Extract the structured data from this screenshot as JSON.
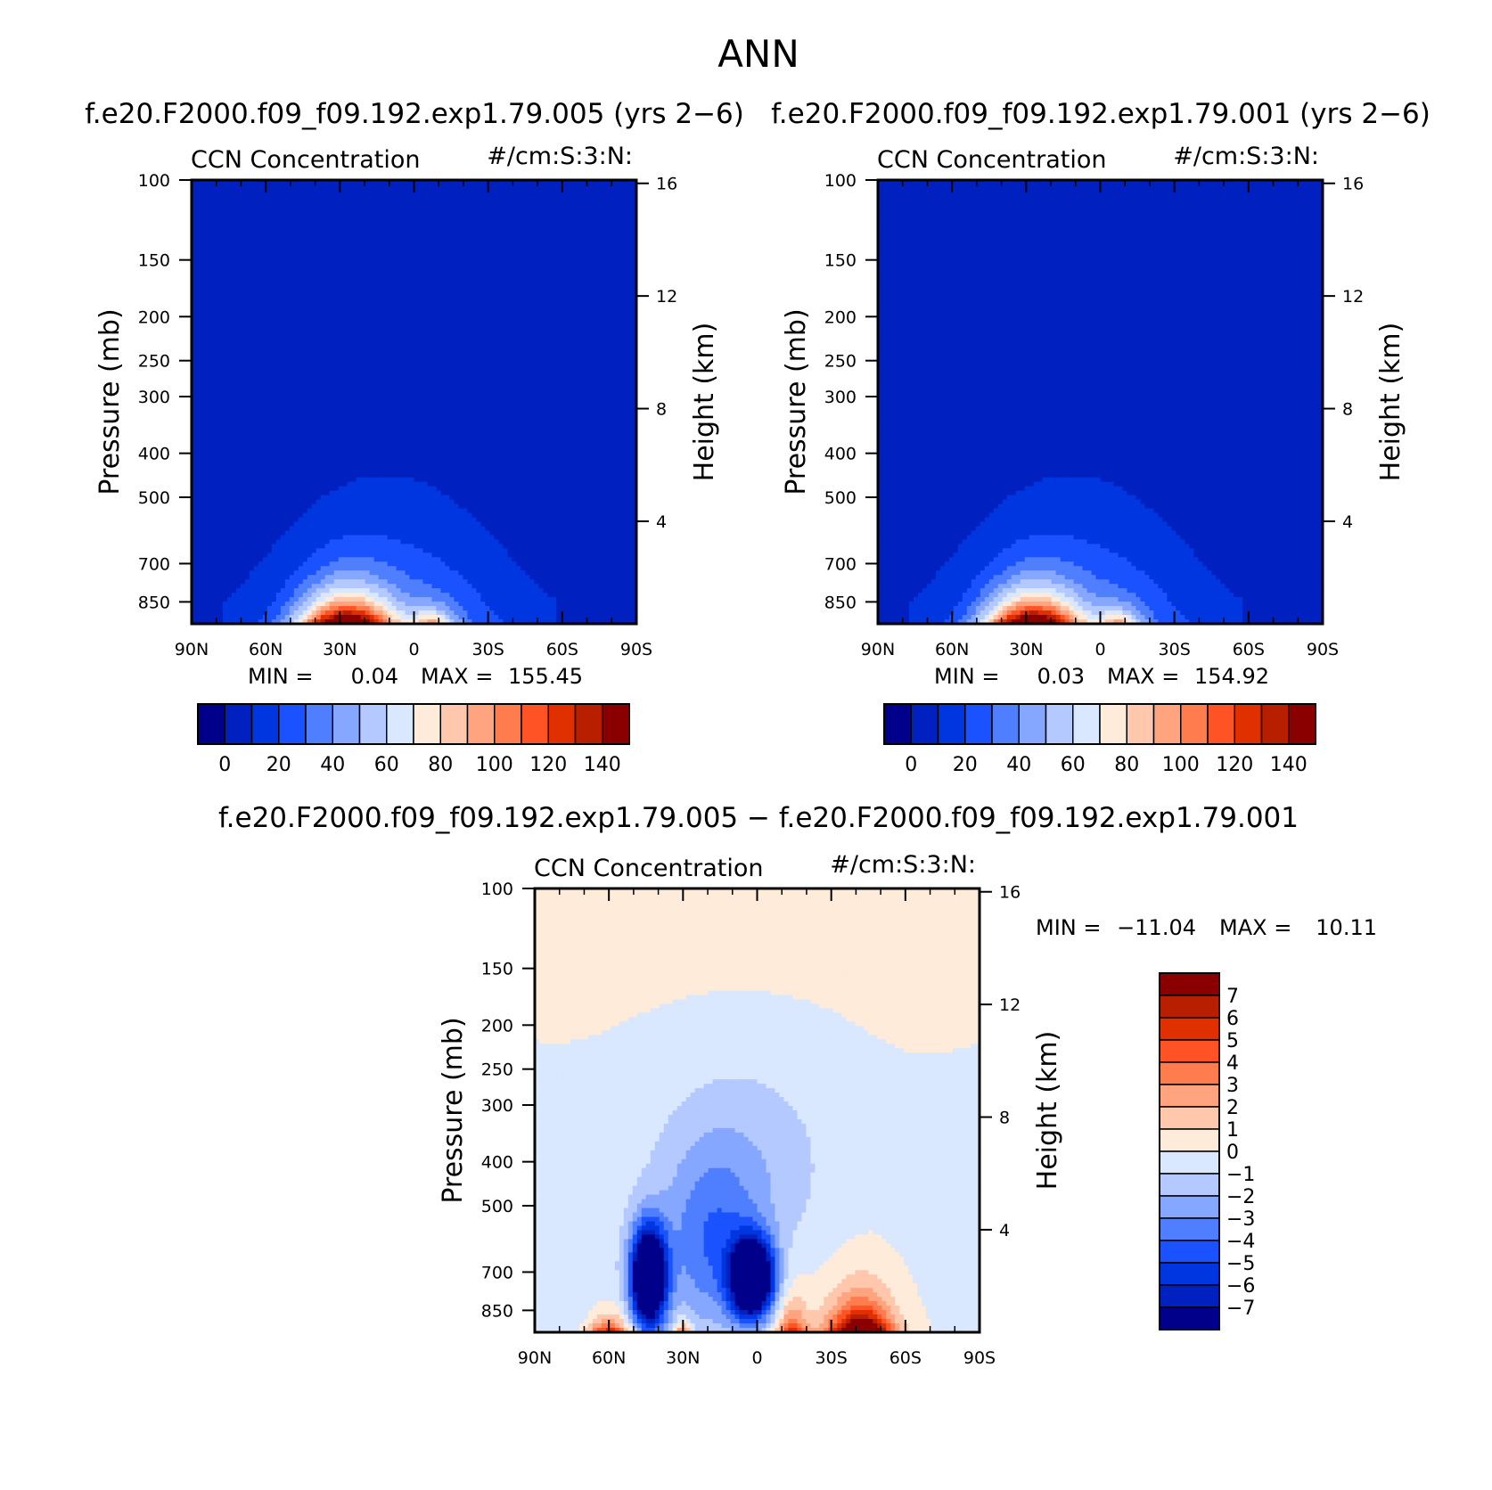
{
  "figure_title": "ANN",
  "palette": [
    "#00008b",
    "#0020c0",
    "#0036e0",
    "#1a52ff",
    "#4f7fff",
    "#86a7ff",
    "#b4c9ff",
    "#d9e7ff",
    "#ffebda",
    "#ffc8ad",
    "#ffa47f",
    "#ff7c4e",
    "#ff5326",
    "#e03000",
    "#b81e00",
    "#8a0000"
  ],
  "chart_data": [
    {
      "id": "case1",
      "type": "contour",
      "case_title": "f.e20.F2000.f09_f09.192.exp1.79.005 (yrs 2−6)",
      "left_label": "CCN Concentration",
      "right_label": "#/cm:S:3:N:",
      "ylabel": "Pressure (mb)",
      "y2label": "Height (km)",
      "x_ticks": [
        "90N",
        "60N",
        "30N",
        "0",
        "30S",
        "60S",
        "90S"
      ],
      "y_ticks": [
        "100",
        "150",
        "200",
        "250",
        "300",
        "400",
        "500",
        "700",
        "850"
      ],
      "y2_ticks": [
        "16",
        "12",
        "8",
        "4"
      ],
      "min_max_text": {
        "min_label": "MIN =",
        "min": "0.04",
        "max_label": "MAX =",
        "max": "155.45"
      },
      "colorbar_labels": [
        "0",
        "20",
        "40",
        "60",
        "80",
        "100",
        "120",
        "140"
      ],
      "levels": [
        0,
        10,
        20,
        30,
        40,
        50,
        60,
        70,
        80,
        90,
        100,
        110,
        120,
        130,
        140
      ],
      "min": 0.04,
      "max": 155.45,
      "peak_latitude": 28,
      "background_level": 1
    },
    {
      "id": "case2",
      "type": "contour",
      "case_title": "f.e20.F2000.f09_f09.192.exp1.79.001 (yrs 2−6)",
      "left_label": "CCN Concentration",
      "right_label": "#/cm:S:3:N:",
      "ylabel": "Pressure (mb)",
      "y2label": "Height (km)",
      "x_ticks": [
        "90N",
        "60N",
        "30N",
        "0",
        "30S",
        "60S",
        "90S"
      ],
      "y_ticks": [
        "100",
        "150",
        "200",
        "250",
        "300",
        "400",
        "500",
        "700",
        "850"
      ],
      "y2_ticks": [
        "16",
        "12",
        "8",
        "4"
      ],
      "min_max_text": {
        "min_label": "MIN =",
        "min": "0.03",
        "max_label": "MAX =",
        "max": "154.92"
      },
      "colorbar_labels": [
        "0",
        "20",
        "40",
        "60",
        "80",
        "100",
        "120",
        "140"
      ],
      "levels": [
        0,
        10,
        20,
        30,
        40,
        50,
        60,
        70,
        80,
        90,
        100,
        110,
        120,
        130,
        140
      ],
      "min": 0.03,
      "max": 154.92,
      "peak_latitude": 28,
      "background_level": 1
    },
    {
      "id": "diff",
      "type": "contour",
      "case_title": "f.e20.F2000.f09_f09.192.exp1.79.005 − f.e20.F2000.f09_f09.192.exp1.79.001",
      "left_label": "CCN Concentration",
      "right_label": "#/cm:S:3:N:",
      "ylabel": "Pressure (mb)",
      "y2label": "Height (km)",
      "x_ticks": [
        "90N",
        "60N",
        "30N",
        "0",
        "30S",
        "60S",
        "90S"
      ],
      "y_ticks": [
        "100",
        "150",
        "200",
        "250",
        "300",
        "400",
        "500",
        "700",
        "850"
      ],
      "y2_ticks": [
        "16",
        "12",
        "8",
        "4"
      ],
      "min_max_text": {
        "min_label": "MIN =",
        "min": "−11.04",
        "max_label": "MAX =",
        "max": "10.11"
      },
      "colorbar_labels": [
        "7",
        "6",
        "5",
        "4",
        "3",
        "2",
        "1",
        "0",
        "−1",
        "−2",
        "−3",
        "−4",
        "−5",
        "−6",
        "−7"
      ],
      "levels": [
        -7,
        -6,
        -5,
        -4,
        -3,
        -2,
        -1,
        0,
        1,
        2,
        3,
        4,
        5,
        6,
        7
      ],
      "min": -11.04,
      "max": 10.11,
      "features": [
        {
          "lat": 60,
          "p": 880,
          "value": 4
        },
        {
          "lat": 43,
          "p": 730,
          "value": -9
        },
        {
          "lat": 2,
          "p": 730,
          "value": -10
        },
        {
          "lat": -42,
          "p": 860,
          "value": 8
        }
      ]
    }
  ]
}
